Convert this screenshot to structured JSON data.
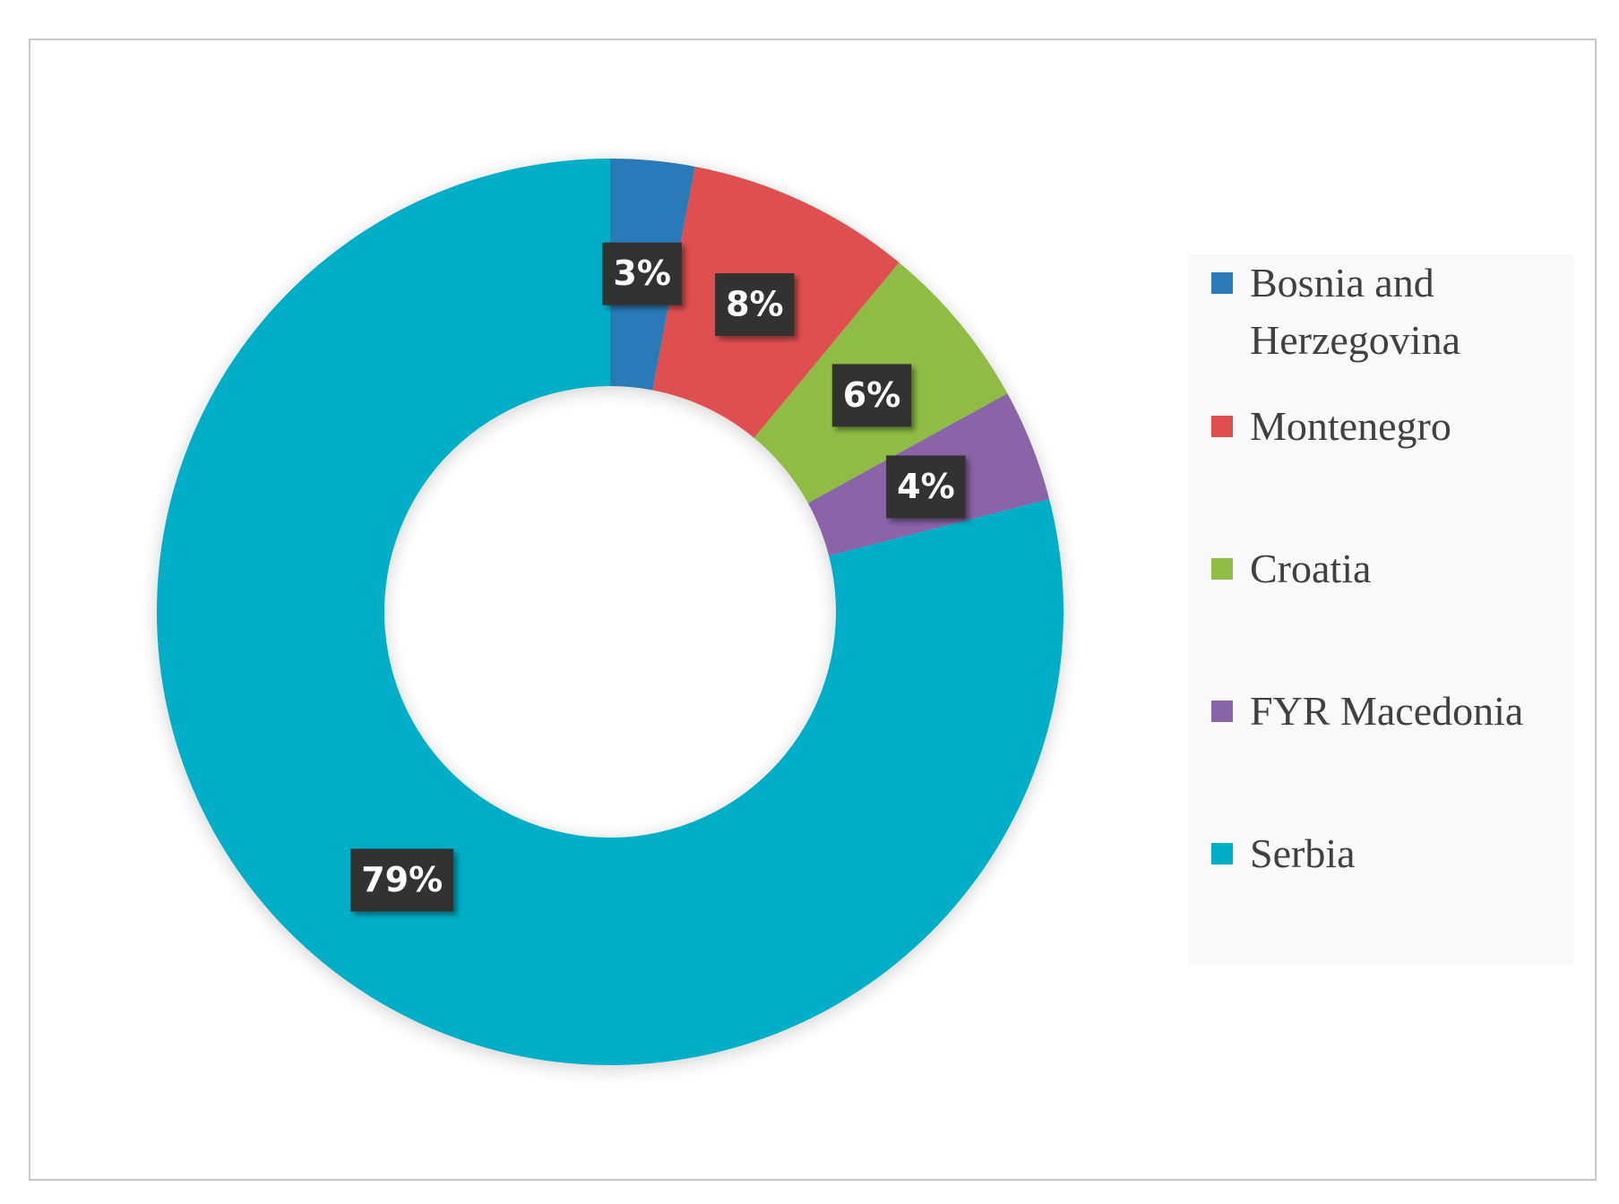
{
  "chart_data": {
    "type": "donut",
    "categories": [
      "Bosnia and Herzegovina",
      "Montenegro",
      "Croatia",
      "FYR Macedonia",
      "Serbia"
    ],
    "values": [
      3,
      8,
      6,
      4,
      79
    ],
    "value_labels": [
      "3%",
      "8%",
      "6%",
      "4%",
      "79%"
    ],
    "colors": [
      "#2a7ab9",
      "#e04f4f",
      "#8fbc45",
      "#8a64a8",
      "#00aec7"
    ],
    "legend": "right"
  }
}
